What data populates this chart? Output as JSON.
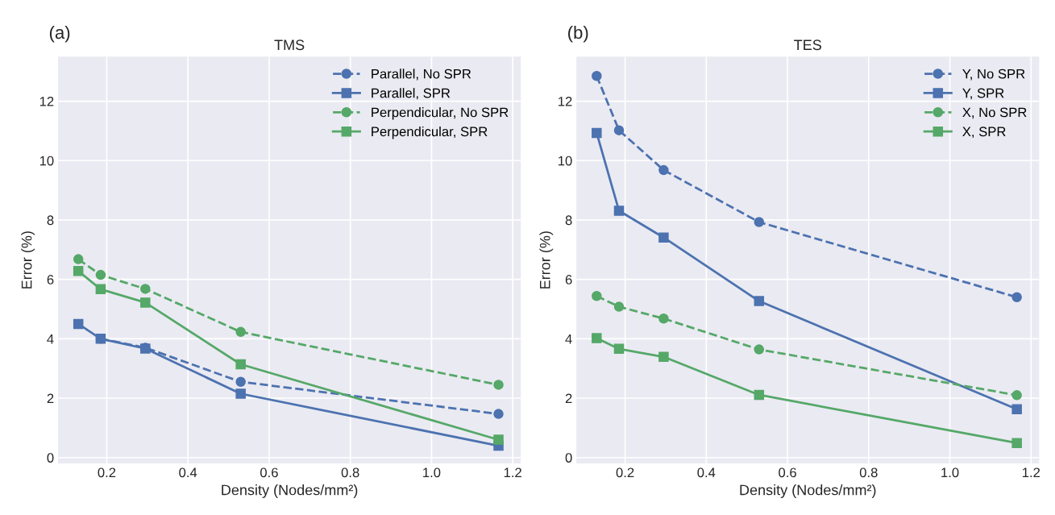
{
  "chart_data": [
    {
      "type": "line",
      "title": "TMS",
      "annotations": [
        "(a)"
      ],
      "xlabel": "Density (Nodes/mm²)",
      "ylabel": "Error (%)",
      "xlim": [
        0.08,
        1.22
      ],
      "xticks": [
        0.2,
        0.4,
        0.6,
        0.8,
        {
          "value": 1,
          "label": "1.0"
        },
        1.2
      ],
      "ylim": [
        -0.2,
        13.5
      ],
      "yticks": [
        0,
        2,
        4,
        6,
        8,
        10,
        12
      ],
      "grid": true,
      "legend": "top right",
      "x": [
        0.13,
        0.185,
        0.295,
        0.53,
        1.165
      ],
      "series": [
        {
          "name": "Parallel, No SPR",
          "color": "#4c72b0",
          "marker": "circle",
          "line_style": "dashed",
          "values": [
            null,
            4.0,
            3.7,
            2.55,
            1.47
          ]
        },
        {
          "name": "Parallel, SPR",
          "color": "#4c72b0",
          "marker": "square",
          "line_style": "solid",
          "values": [
            4.5,
            4.0,
            3.67,
            2.15,
            0.4
          ]
        },
        {
          "name": "Perpendicular, No SPR",
          "color": "#55a868",
          "marker": "circle",
          "line_style": "dashed",
          "values": [
            6.68,
            6.15,
            5.68,
            4.23,
            2.45
          ]
        },
        {
          "name": "Perpendicular, SPR",
          "color": "#55a868",
          "marker": "square",
          "line_style": "solid",
          "values": [
            6.28,
            5.67,
            5.22,
            3.14,
            0.6
          ]
        }
      ]
    },
    {
      "type": "line",
      "title": "TES",
      "annotations": [
        "(b)"
      ],
      "xlabel": "Density (Nodes/mm²)",
      "ylabel": "Error (%)",
      "xlim": [
        0.08,
        1.22
      ],
      "xticks": [
        0.2,
        0.4,
        0.6,
        0.8,
        {
          "value": 1,
          "label": "1.0"
        },
        1.2
      ],
      "ylim": [
        -0.2,
        13.5
      ],
      "yticks": [
        0,
        2,
        4,
        6,
        8,
        10,
        12
      ],
      "grid": true,
      "legend": "top right",
      "x": [
        0.13,
        0.185,
        0.295,
        0.53,
        1.165
      ],
      "series": [
        {
          "name": "Y, No SPR",
          "color": "#4c72b0",
          "marker": "circle",
          "line_style": "dashed",
          "values": [
            12.85,
            11.02,
            9.68,
            7.93,
            5.4
          ]
        },
        {
          "name": "Y, SPR",
          "color": "#4c72b0",
          "marker": "square",
          "line_style": "solid",
          "values": [
            10.93,
            8.31,
            7.41,
            5.27,
            1.63
          ]
        },
        {
          "name": "X, No SPR",
          "color": "#55a868",
          "marker": "circle",
          "line_style": "dashed",
          "values": [
            5.44,
            5.08,
            4.68,
            3.64,
            2.1
          ]
        },
        {
          "name": "X, SPR",
          "color": "#55a868",
          "marker": "square",
          "line_style": "solid",
          "values": [
            4.02,
            3.66,
            3.39,
            2.11,
            0.49
          ]
        }
      ]
    }
  ]
}
